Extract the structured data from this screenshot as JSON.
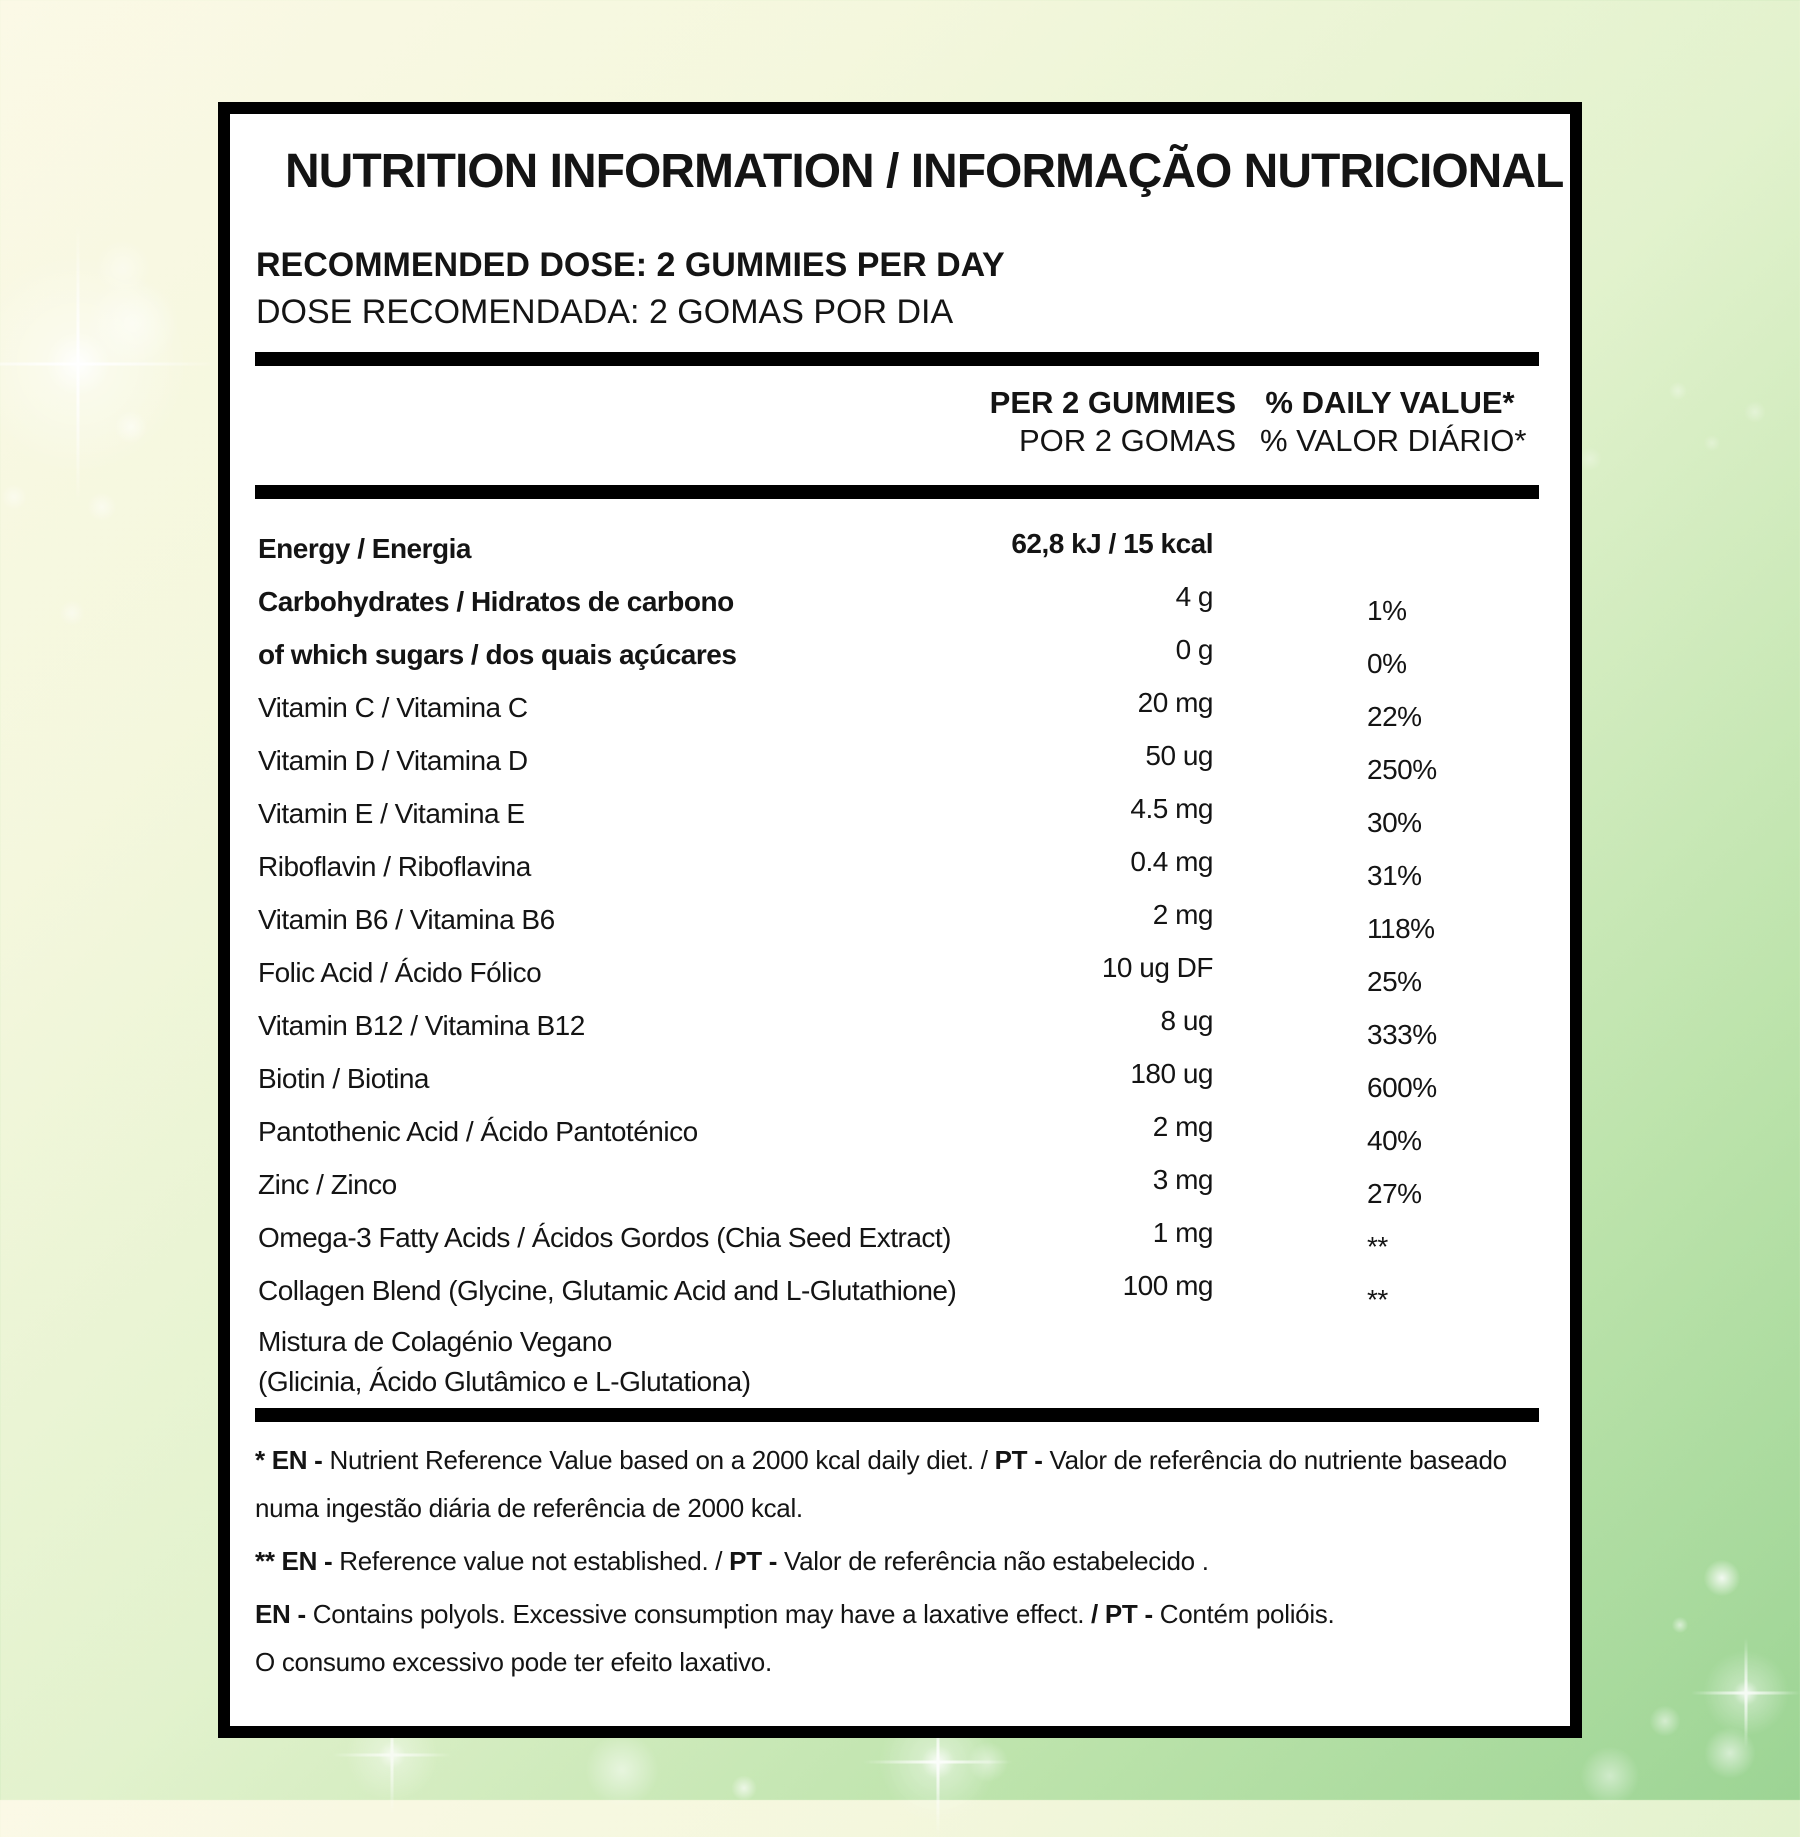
{
  "background": {
    "top_left_color": "#fbf9e6",
    "bottom_right_color": "#9cd494",
    "sparkle_color": "#ffffff"
  },
  "label": {
    "title": "NUTRITION INFORMATION / INFORMAÇÃO NUTRICIONAL",
    "recommended_dose": {
      "en": "RECOMMENDED DOSE: 2 GUMMIES PER DAY",
      "pt": "DOSE RECOMENDADA: 2 GOMAS POR DIA"
    },
    "table": {
      "headers": {
        "amount_en": "PER 2 GUMMIES",
        "amount_pt": "POR 2 GOMAS",
        "daily_value_en": "% DAILY VALUE*",
        "daily_value_pt": "% VALOR DIÁRIO*"
      },
      "rows": [
        {
          "name": "Energy / Energia",
          "amount": "62,8 kJ / 15 kcal",
          "daily_value": "",
          "name_bold": true,
          "amount_bold": true
        },
        {
          "name": "Carbohydrates / Hidratos de carbono",
          "amount": "4 g",
          "daily_value": "1%",
          "name_bold": true,
          "amount_bold": false
        },
        {
          "name": "of which sugars / dos quais açúcares",
          "amount": "0 g",
          "daily_value": "0%",
          "name_bold": true,
          "amount_bold": false
        },
        {
          "name": "Vitamin C / Vitamina C",
          "amount": "20 mg",
          "daily_value": "22%",
          "name_bold": false,
          "amount_bold": false
        },
        {
          "name": "Vitamin D / Vitamina D",
          "amount": "50 ug",
          "daily_value": "250%",
          "name_bold": false,
          "amount_bold": false
        },
        {
          "name": "Vitamin E / Vitamina E",
          "amount": "4.5 mg",
          "daily_value": "30%",
          "name_bold": false,
          "amount_bold": false
        },
        {
          "name": "Riboflavin / Riboflavina",
          "amount": "0.4 mg",
          "daily_value": "31%",
          "name_bold": false,
          "amount_bold": false
        },
        {
          "name": "Vitamin B6 / Vitamina B6",
          "amount": "2 mg",
          "daily_value": "118%",
          "name_bold": false,
          "amount_bold": false
        },
        {
          "name": "Folic Acid / Ácido Fólico",
          "amount": "10 ug DF",
          "daily_value": "25%",
          "name_bold": false,
          "amount_bold": false
        },
        {
          "name": "Vitamin B12 / Vitamina B12",
          "amount": "8 ug",
          "daily_value": "333%",
          "name_bold": false,
          "amount_bold": false
        },
        {
          "name": "Biotin / Biotina",
          "amount": "180 ug",
          "daily_value": "600%",
          "name_bold": false,
          "amount_bold": false
        },
        {
          "name": "Pantothenic Acid / Ácido Pantoténico",
          "amount": "2 mg",
          "daily_value": "40%",
          "name_bold": false,
          "amount_bold": false
        },
        {
          "name": "Zinc / Zinco",
          "amount": "3 mg",
          "daily_value": "27%",
          "name_bold": false,
          "amount_bold": false
        },
        {
          "name": "Omega-3 Fatty Acids / Ácidos Gordos (Chia Seed Extract)",
          "amount": "1 mg",
          "daily_value": "**",
          "name_bold": false,
          "amount_bold": false
        },
        {
          "name": "Collagen Blend (Glycine, Glutamic Acid and L-Glutathione)",
          "amount": "100 mg",
          "daily_value": "**",
          "name_bold": false,
          "amount_bold": false
        },
        {
          "name": "Mistura de Colagénio Vegano\n(Glicinia, Ácido Glutâmico e L-Glutationa)",
          "amount": "",
          "daily_value": "",
          "name_bold": false,
          "amount_bold": false
        }
      ]
    },
    "footnotes": [
      {
        "segments": [
          {
            "text": "* EN - ",
            "bold": true
          },
          {
            "text": "Nutrient Reference Value based on a 2000 kcal daily diet. / ",
            "bold": false
          },
          {
            "text": "PT - ",
            "bold": true
          },
          {
            "text": "Valor de referência do nutriente baseado numa ingestão diária de referência de 2000 kcal.",
            "bold": false
          }
        ]
      },
      {
        "segments": [
          {
            "text": "** EN - ",
            "bold": true
          },
          {
            "text": "Reference value not established. / ",
            "bold": false
          },
          {
            "text": "PT - ",
            "bold": true
          },
          {
            "text": "Valor de referência não estabelecido .",
            "bold": false
          }
        ]
      },
      {
        "segments": [
          {
            "text": "EN - ",
            "bold": true
          },
          {
            "text": "Contains polyols. Excessive consumption may have a laxative effect. ",
            "bold": false
          },
          {
            "text": "/ PT - ",
            "bold": true
          },
          {
            "text": "Contém polióis.\nO consumo excessivo pode ter efeito laxativo.",
            "bold": false
          }
        ]
      }
    ]
  }
}
